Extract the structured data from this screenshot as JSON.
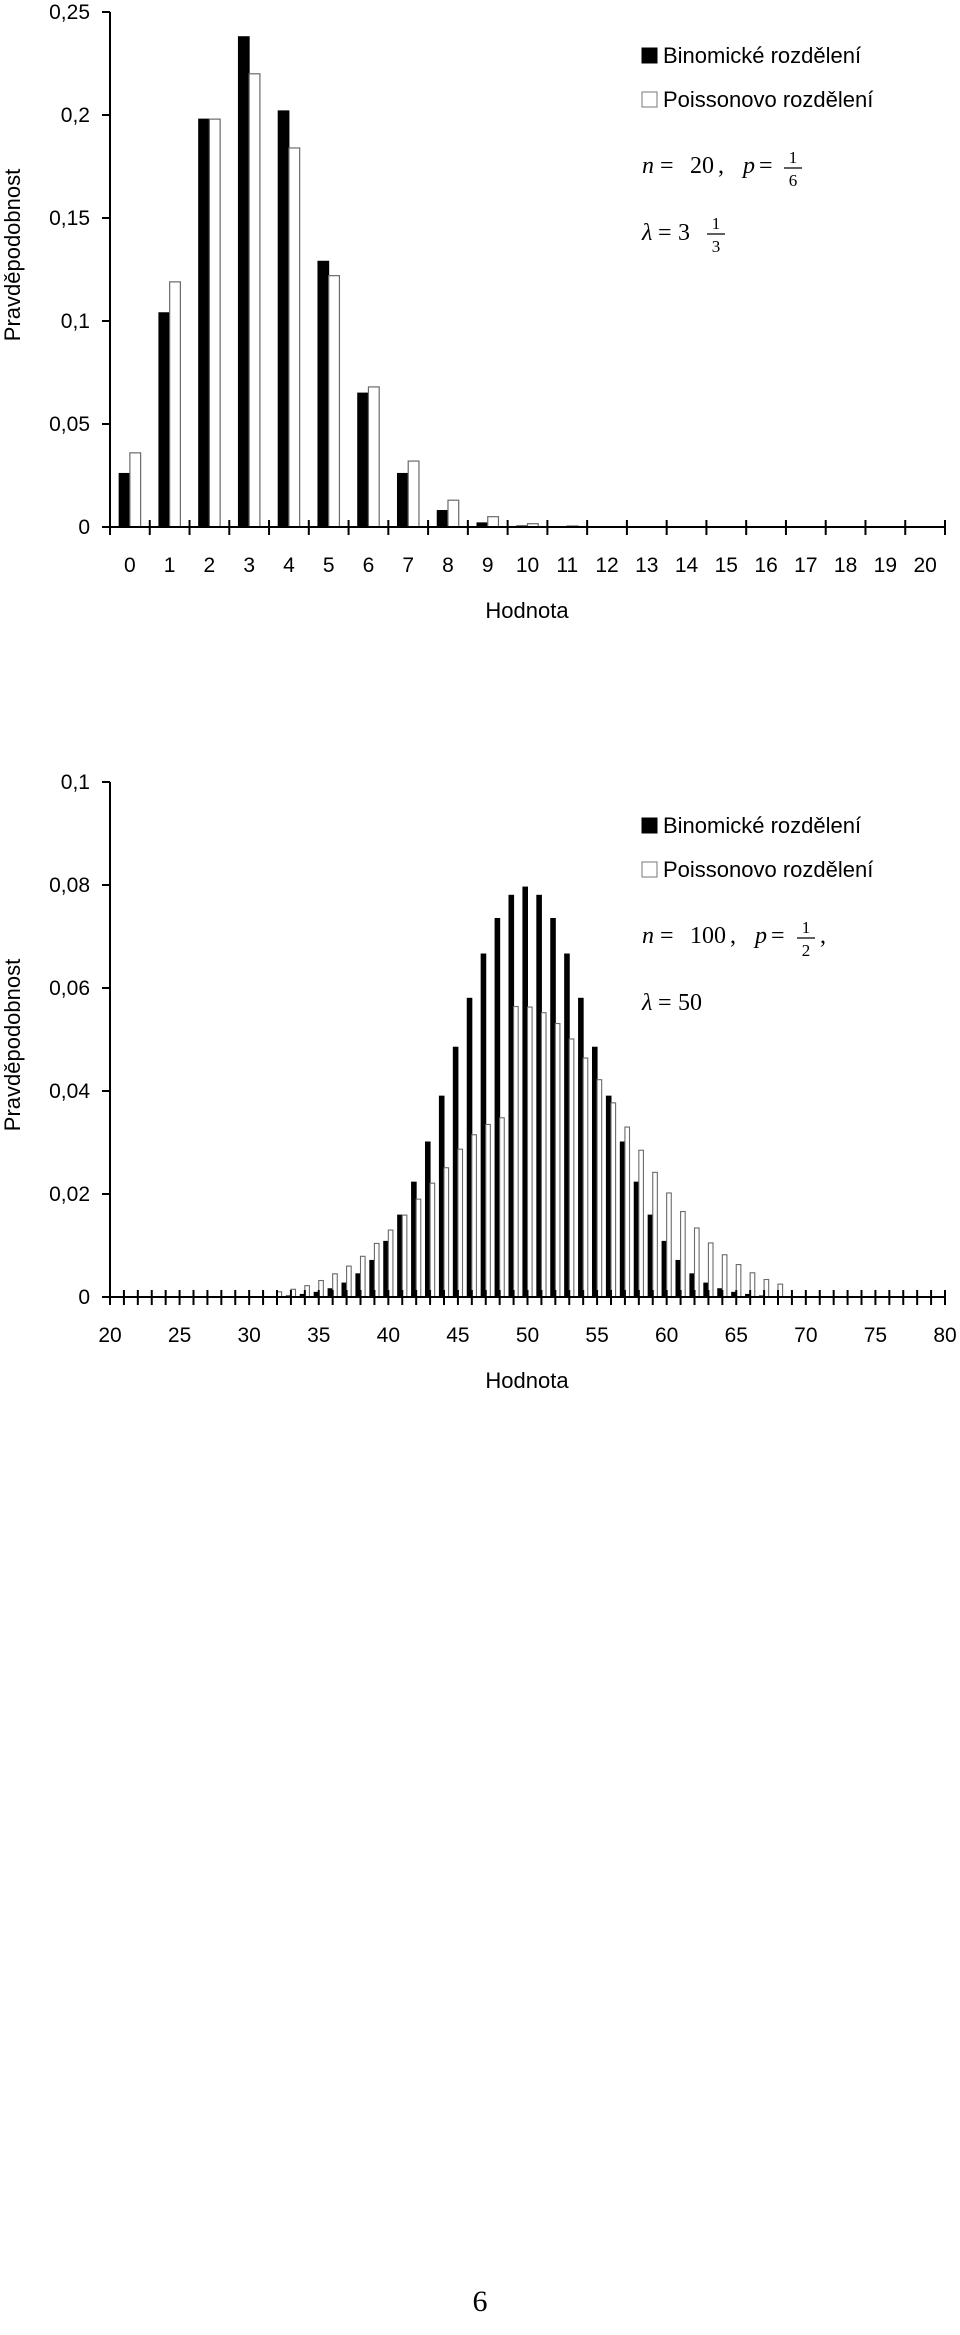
{
  "chart_data": [
    {
      "type": "bar",
      "xlabel": "Hodnota",
      "ylabel": "Pravděpodobnost",
      "xlim": [
        0,
        20
      ],
      "ylim": [
        0,
        0.25
      ],
      "y_ticks": [
        "0",
        "0,05",
        "0,1",
        "0,15",
        "0,2",
        "0,25"
      ],
      "x_ticks": [
        "0",
        "1",
        "2",
        "3",
        "4",
        "5",
        "6",
        "7",
        "8",
        "9",
        "10",
        "11",
        "12",
        "13",
        "14",
        "15",
        "16",
        "17",
        "18",
        "19",
        "20"
      ],
      "categories": [
        0,
        1,
        2,
        3,
        4,
        5,
        6,
        7,
        8,
        9,
        10,
        11,
        12,
        13,
        14,
        15,
        16,
        17,
        18,
        19,
        20
      ],
      "series": [
        {
          "name": "Binomické rozdělení",
          "color": "#000000",
          "values": [
            0.026,
            0.104,
            0.198,
            0.238,
            0.202,
            0.129,
            0.065,
            0.026,
            0.008,
            0.002,
            0.0005,
            0.0001,
            0,
            0,
            0,
            0,
            0,
            0,
            0,
            0,
            0
          ]
        },
        {
          "name": "Poissonovo rozdělení",
          "color": "#ffffff",
          "values": [
            0.036,
            0.119,
            0.198,
            0.22,
            0.184,
            0.122,
            0.068,
            0.032,
            0.013,
            0.005,
            0.0016,
            0.0005,
            0.0001,
            0,
            0,
            0,
            0,
            0,
            0,
            0,
            0
          ]
        }
      ],
      "legend_position": "top-right",
      "annotation": {
        "n": "20",
        "p_num": "1",
        "p_den": "6",
        "lambda_int": "3",
        "lambda_num": "1",
        "lambda_den": "3"
      }
    },
    {
      "type": "bar",
      "xlabel": "Hodnota",
      "ylabel": "Pravděpodobnost",
      "xlim": [
        20,
        80
      ],
      "ylim": [
        0,
        0.1
      ],
      "y_ticks": [
        "0",
        "0,02",
        "0,04",
        "0,06",
        "0,08",
        "0,1"
      ],
      "x_ticks": [
        "20",
        "25",
        "30",
        "35",
        "40",
        "45",
        "50",
        "55",
        "60",
        "65",
        "70",
        "75",
        "80"
      ],
      "x_tick_values": [
        20,
        25,
        30,
        35,
        40,
        45,
        50,
        55,
        60,
        65,
        70,
        75,
        80
      ],
      "categories": [
        32,
        33,
        34,
        35,
        36,
        37,
        38,
        39,
        40,
        41,
        42,
        43,
        44,
        45,
        46,
        47,
        48,
        49,
        50,
        51,
        52,
        53,
        54,
        55,
        56,
        57,
        58,
        59,
        60,
        61,
        62,
        63,
        64,
        65,
        66,
        67,
        68
      ],
      "series": [
        {
          "name": "Binomické rozdělení",
          "color": "#000000",
          "values": [
            0.0001,
            0.0002,
            0.0005,
            0.0009,
            0.0016,
            0.0027,
            0.0045,
            0.0071,
            0.0108,
            0.0159,
            0.0223,
            0.0301,
            0.039,
            0.0485,
            0.058,
            0.0666,
            0.0735,
            0.078,
            0.0796,
            0.078,
            0.0735,
            0.0666,
            0.058,
            0.0485,
            0.039,
            0.0301,
            0.0223,
            0.0159,
            0.0108,
            0.0071,
            0.0045,
            0.0027,
            0.0016,
            0.0009,
            0.0005,
            0.0002,
            0.0001
          ]
        },
        {
          "name": "Poissonovo rozdělení",
          "color": "#ffffff",
          "values": [
            0.001,
            0.0015,
            0.0022,
            0.0032,
            0.0045,
            0.006,
            0.0079,
            0.0104,
            0.013,
            0.0159,
            0.019,
            0.0221,
            0.0251,
            0.0287,
            0.0315,
            0.0335,
            0.0348,
            0.0564,
            0.0563,
            0.0552,
            0.0531,
            0.0501,
            0.0464,
            0.0422,
            0.0377,
            0.033,
            0.0285,
            0.0242,
            0.0202,
            0.0166,
            0.0134,
            0.0105,
            0.0082,
            0.0063,
            0.0047,
            0.0034,
            0.0025
          ]
        }
      ],
      "legend_position": "top-right",
      "annotation": {
        "n": "100",
        "p_num": "1",
        "p_den": "2",
        "lambda": "50"
      }
    }
  ],
  "page_number": "6"
}
